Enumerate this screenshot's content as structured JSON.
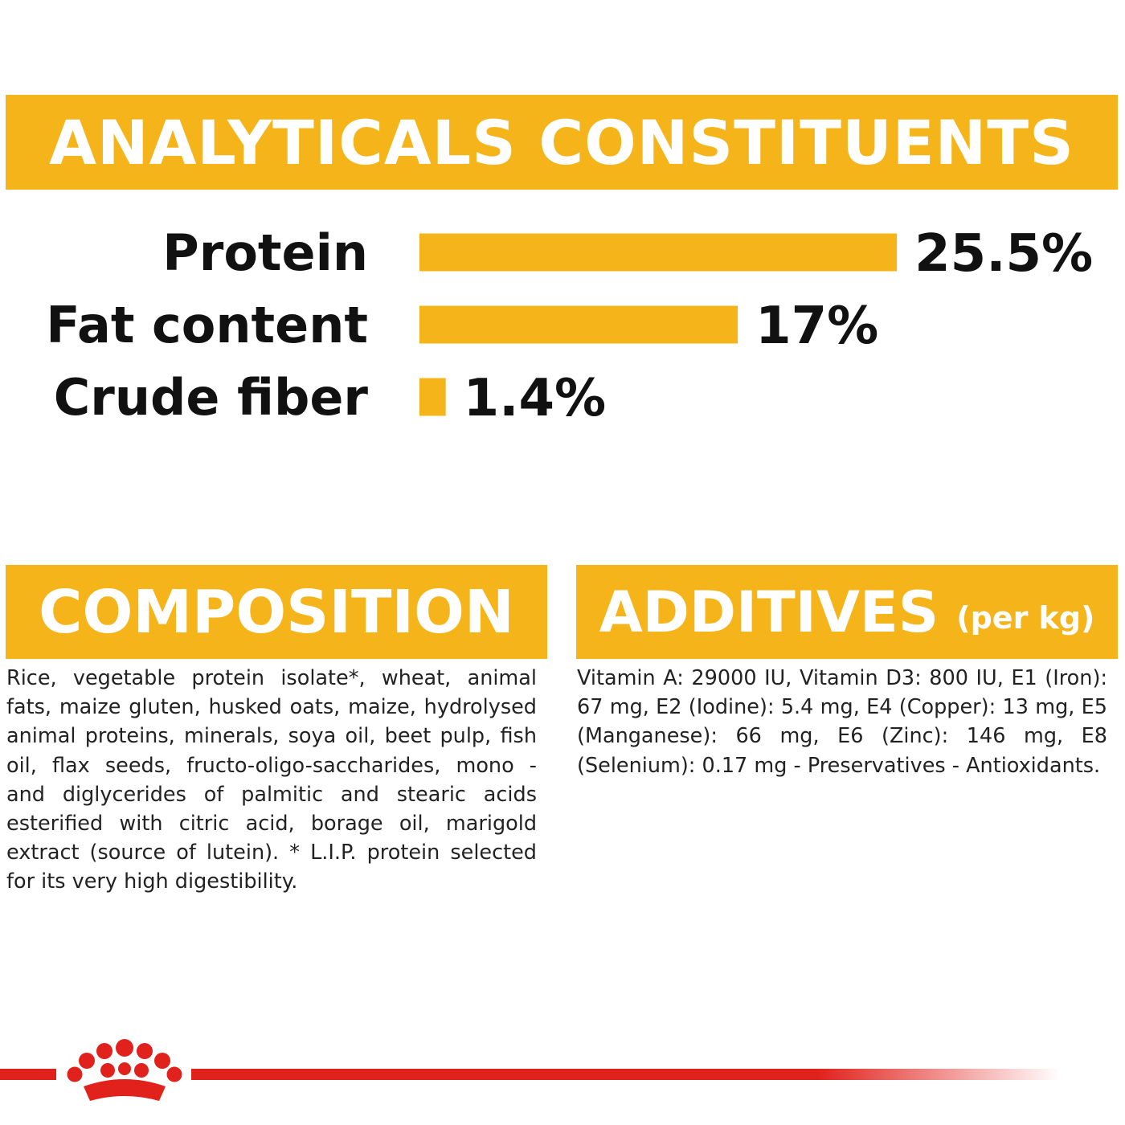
{
  "header": {
    "title": "ANALYTICALS CONSTITUENTS"
  },
  "chart_data": {
    "type": "bar",
    "orientation": "horizontal",
    "title": "ANALYTICALS CONSTITUENTS",
    "categories": [
      "Protein",
      "Fat content",
      "Crude fiber"
    ],
    "values": [
      25.5,
      17,
      1.4
    ],
    "value_labels": [
      "25.5%",
      "17%",
      "1.4%"
    ],
    "unit": "%",
    "bar_color": "#f5b41a",
    "grid": false,
    "legend": "none"
  },
  "composition": {
    "title": "COMPOSITION",
    "text": "Rice, vegetable protein isolate*, wheat, animal fats, maize gluten, husked oats, maize, hydrolysed animal proteins, minerals, soya oil, beet pulp, fish oil, flax seeds, fructo-oligo-saccharides, mono - and diglycerides of palmitic and stearic acids esterified with citric acid, borage oil, marigold extract (source of lutein). * L.I.P. protein selected for its very high digestibility."
  },
  "additives": {
    "title": "ADDITIVES",
    "subtitle": "(per kg)",
    "text": "Vitamin A: 29000 IU, Vitamin D3: 800 IU, E1 (Iron): 67 mg, E2 (Iodine): 5.4 mg, E4 (Copper): 13 mg, E5 (Manganese): 66 mg, E6 (Zinc): 146 mg, E8 (Selenium): 0.17 mg - Preservatives - Antioxidants."
  },
  "colors": {
    "accent": "#f5b41a",
    "brand_red": "#e1211c",
    "text": "#111111"
  },
  "footer": {
    "logo_icon": "crown-logo-icon"
  }
}
